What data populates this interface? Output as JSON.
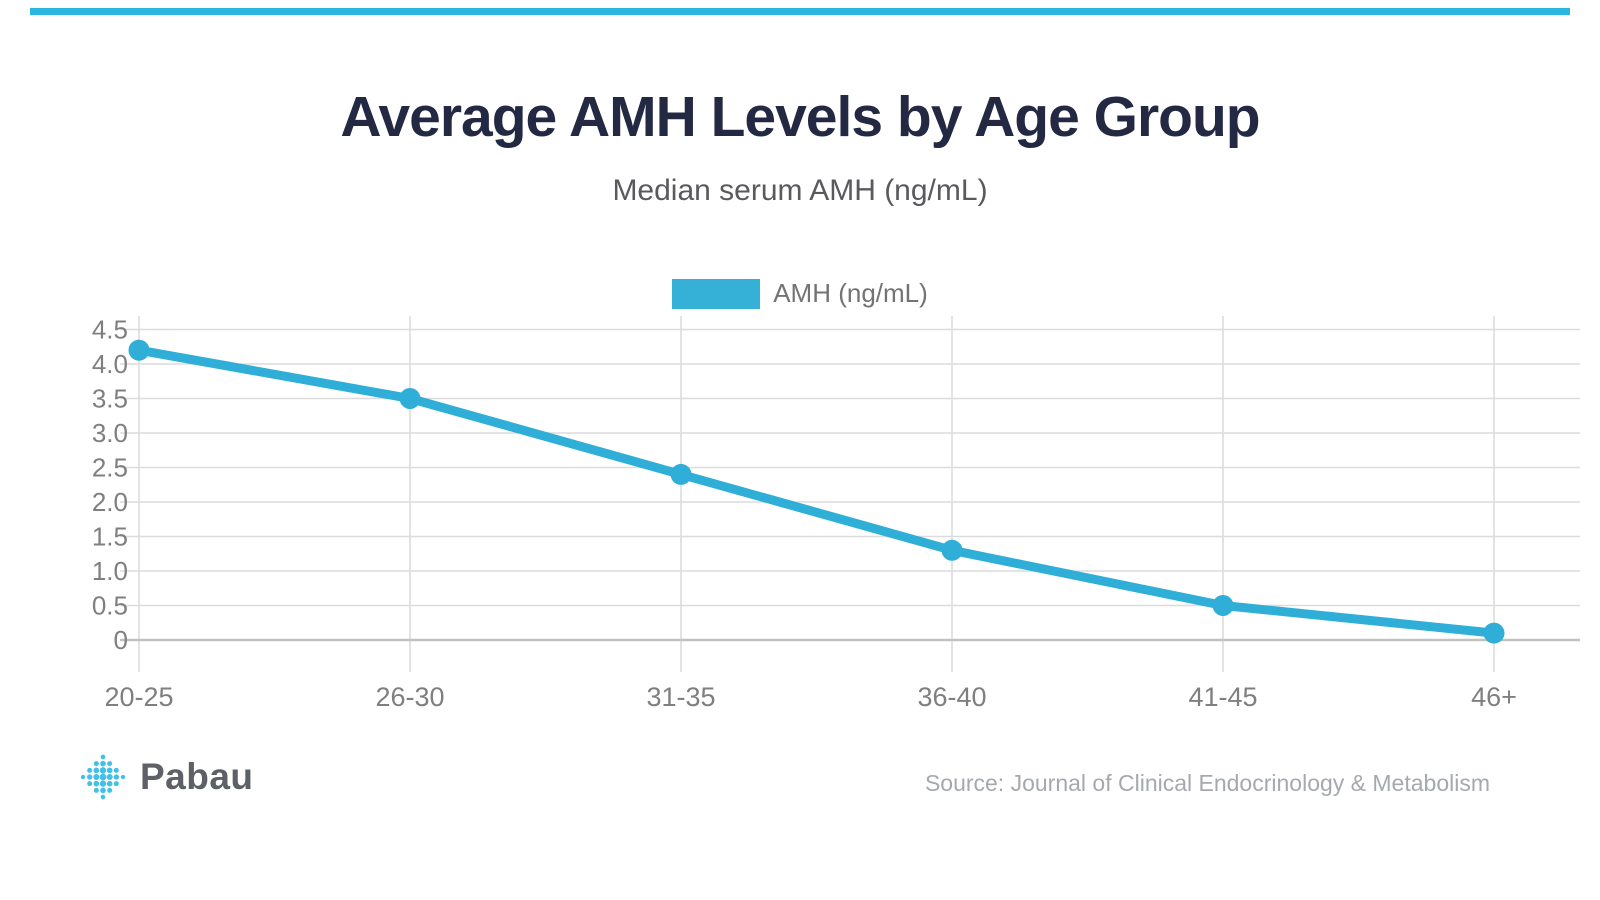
{
  "page": {
    "background": "#ffffff",
    "accent_bar_color": "#2bb6e0"
  },
  "header": {
    "title": "Average AMH Levels by Age Group",
    "subtitle": "Median serum AMH (ng/mL)"
  },
  "legend": {
    "label": "AMH (ng/mL)",
    "swatch_color": "#35b0d6"
  },
  "chart_data": {
    "type": "line",
    "title": "Average AMH Levels by Age Group",
    "subtitle": "Median serum AMH (ng/mL)",
    "categories": [
      "20-25",
      "26-30",
      "31-35",
      "36-40",
      "41-45",
      "46+"
    ],
    "series": [
      {
        "name": "AMH (ng/mL)",
        "values": [
          4.2,
          3.5,
          2.4,
          1.3,
          0.5,
          0.1
        ]
      }
    ],
    "xlabel": "",
    "ylabel": "",
    "ylim": [
      0,
      4.5
    ],
    "ytick_step": 0.5,
    "ytick_labels": [
      "4.5",
      "4.0",
      "3.5",
      "3.0",
      "2.5",
      "2.0",
      "1.5",
      "1.0",
      "0.5",
      "0"
    ],
    "grid": true,
    "legend_position": "top-center",
    "line_color": "#2fafd7",
    "marker": "circle",
    "gridline_color": "#dcdcdc",
    "axis_line_color": "#c2c2c2",
    "tick_label_color": "#7f7f7f"
  },
  "footer": {
    "brand": "Pabau",
    "logo_color": "#41c0e8",
    "source": "Source: Journal of Clinical Endocrinology & Metabolism"
  }
}
